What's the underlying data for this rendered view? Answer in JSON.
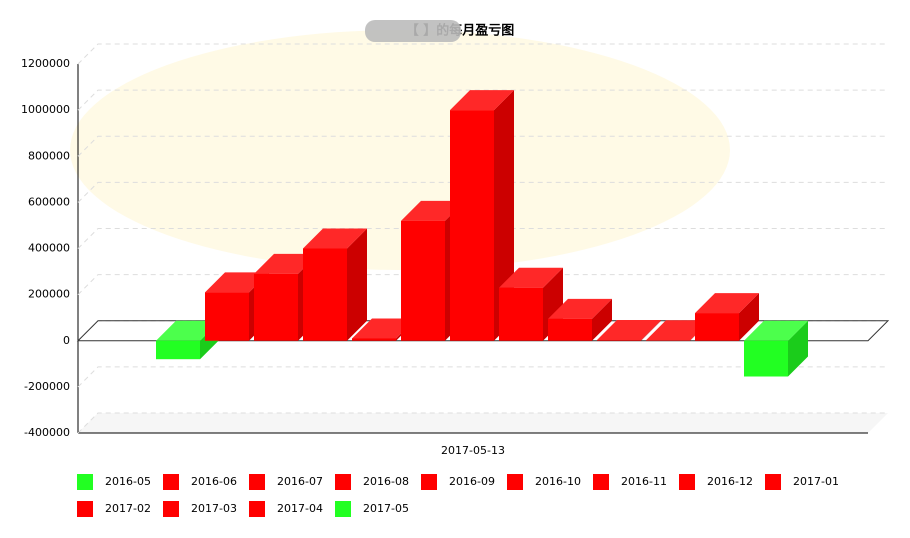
{
  "chart_data": {
    "type": "bar3d",
    "title": "【          】的每月盈亏图",
    "x_label": "2017-05-13",
    "categories": [
      "2016-05",
      "2016-06",
      "2016-07",
      "2016-08",
      "2016-09",
      "2016-10",
      "2016-11",
      "2016-12",
      "2017-01",
      "2017-02",
      "2017-03",
      "2017-04",
      "2017-05"
    ],
    "values": [
      -80000,
      210000,
      290000,
      400000,
      10000,
      520000,
      1000000,
      230000,
      95000,
      3000,
      2000,
      120000,
      -155000
    ],
    "colors": [
      "#22ff22",
      "#ff0000",
      "#ff0000",
      "#ff0000",
      "#ff0000",
      "#ff0000",
      "#ff0000",
      "#ff0000",
      "#ff0000",
      "#ff0000",
      "#ff0000",
      "#ff0000",
      "#22ff22"
    ],
    "ylim": [
      -400000,
      1200000
    ],
    "yticks": [
      -400000,
      -200000,
      0,
      200000,
      400000,
      600000,
      800000,
      1000000,
      1200000
    ],
    "grid": true
  }
}
